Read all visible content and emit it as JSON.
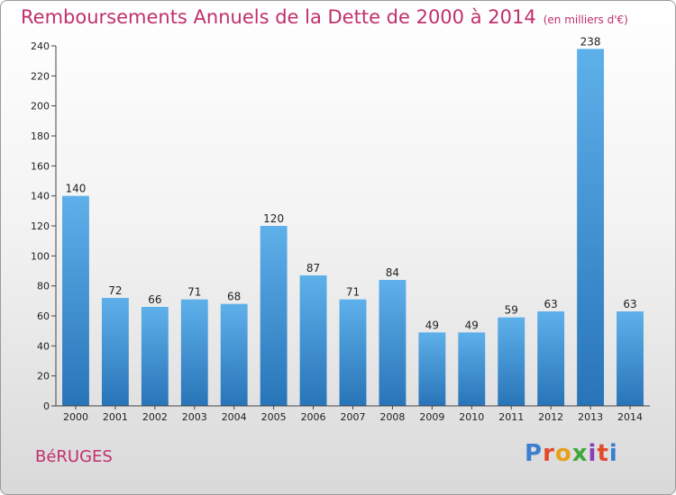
{
  "header": {
    "title": "Remboursements Annuels de la Dette de 2000 à 2014",
    "unit_note": "(en milliers d'€)"
  },
  "footer": {
    "place": "BéRUGES",
    "logo_text": "Proxiti",
    "logo_colors": [
      "#3a7fd0",
      "#e24a2b",
      "#e8a01a",
      "#3fa83a",
      "#8a3fb8",
      "#e24a2b",
      "#3a7fd0"
    ]
  },
  "colors": {
    "title": "#c0306a",
    "bar_light": "#5eb0ea",
    "bar_dark": "#2874b8",
    "axis": "#444444",
    "grid": "#cccccc"
  },
  "chart_data": {
    "type": "bar",
    "title": "Remboursements Annuels de la Dette de 2000 à 2014",
    "subtitle": "(en milliers d'€)",
    "xlabel": "",
    "ylabel": "",
    "categories": [
      "2000",
      "2001",
      "2002",
      "2003",
      "2004",
      "2005",
      "2006",
      "2007",
      "2008",
      "2009",
      "2010",
      "2011",
      "2012",
      "2013",
      "2014"
    ],
    "values": [
      140,
      72,
      66,
      71,
      68,
      120,
      87,
      71,
      84,
      49,
      49,
      59,
      63,
      238,
      63
    ],
    "ylim": [
      0,
      240
    ],
    "yticks": [
      0,
      20,
      40,
      60,
      80,
      100,
      120,
      140,
      160,
      180,
      200,
      220,
      240
    ],
    "grid": false,
    "data_labels": true
  }
}
